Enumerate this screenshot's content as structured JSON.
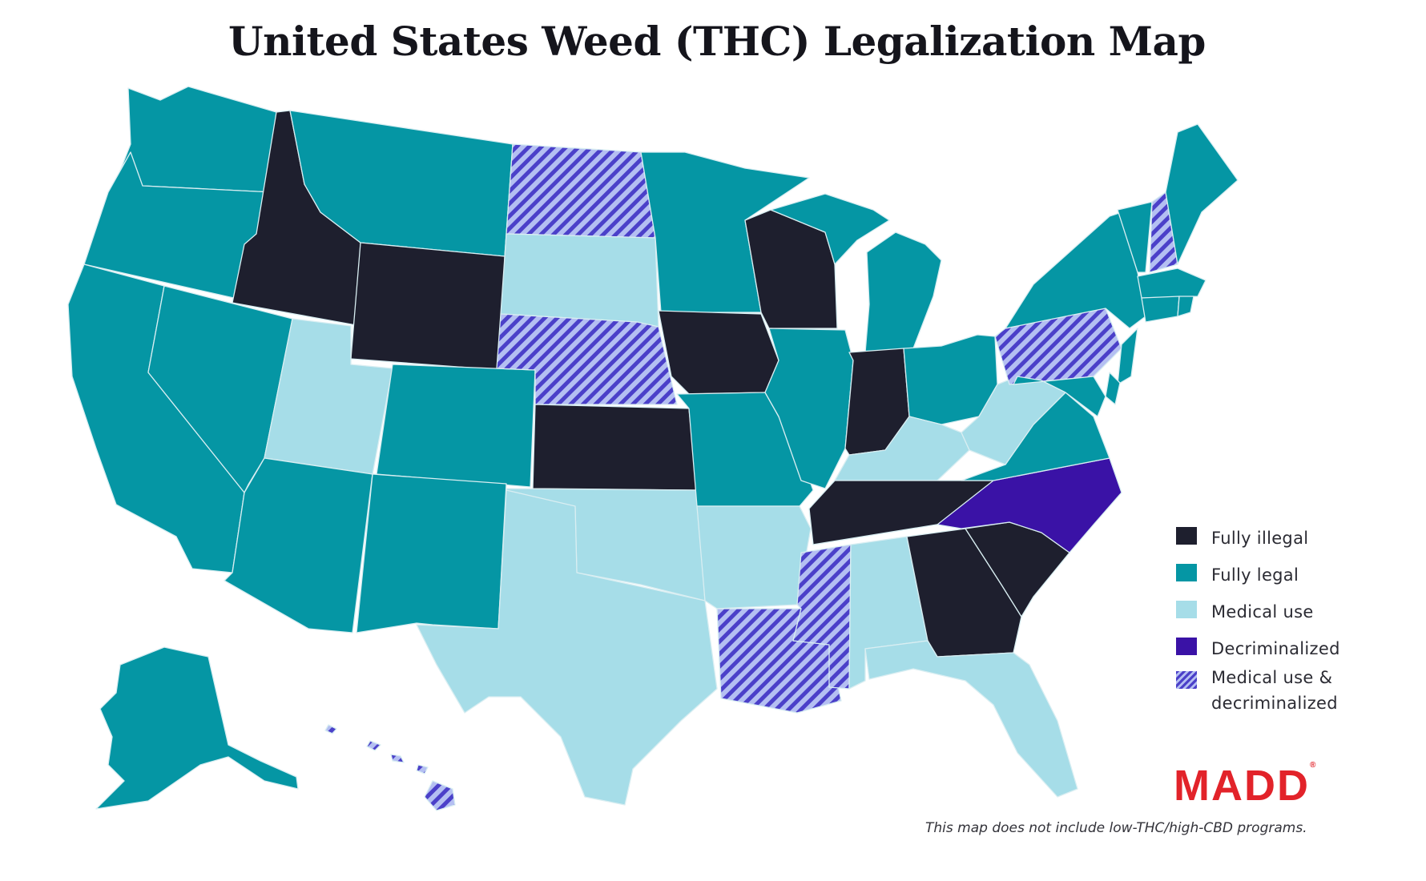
{
  "title": "United States Weed (THC) Legalization Map",
  "colors": {
    "fully_illegal": "#1e1f2e",
    "fully_legal": "#0596a4",
    "medical_use": "#a6dde8",
    "decriminalized": "#3a12a6",
    "medical_decriminalized_stripe": "#4b40c9",
    "medical_decriminalized_base": "#b4bff2",
    "brand_red": "#e2232a",
    "state_border": "#d9eef2"
  },
  "legend": {
    "items": [
      {
        "key": "fully_illegal",
        "label": "Fully illegal"
      },
      {
        "key": "fully_legal",
        "label": "Fully legal"
      },
      {
        "key": "medical_use",
        "label": "Medical use"
      },
      {
        "key": "decriminalized",
        "label": "Decriminalized"
      },
      {
        "key": "medical_decriminalized",
        "label": "Medical use &\ndecriminalized"
      }
    ]
  },
  "brand": {
    "logo_text": "MADD",
    "mark": "®"
  },
  "footnote": "This map does not include low-THC/high-CBD programs.",
  "states": {
    "WA": "fully_legal",
    "OR": "fully_legal",
    "CA": "fully_legal",
    "NV": "fully_legal",
    "ID": "fully_illegal",
    "MT": "fully_legal",
    "WY": "fully_illegal",
    "UT": "medical_use",
    "AZ": "fully_legal",
    "CO": "fully_legal",
    "NM": "fully_legal",
    "ND": "medical_decriminalized",
    "SD": "medical_use",
    "NE": "medical_decriminalized",
    "KS": "fully_illegal",
    "OK": "medical_use",
    "TX": "medical_use",
    "MN": "fully_legal",
    "IA": "fully_illegal",
    "MO": "fully_legal",
    "AR": "medical_use",
    "LA": "medical_decriminalized",
    "WI": "fully_illegal",
    "IL": "fully_legal",
    "MI": "fully_legal",
    "IN": "fully_illegal",
    "OH": "fully_legal",
    "KY": "medical_use",
    "TN": "fully_illegal",
    "MS": "medical_decriminalized",
    "AL": "medical_use",
    "GA": "fully_illegal",
    "FL": "medical_use",
    "SC": "fully_illegal",
    "NC": "decriminalized",
    "VA": "fully_legal",
    "WV": "medical_use",
    "PA": "medical_decriminalized",
    "NY": "fully_legal",
    "VT": "fully_legal",
    "NH": "medical_decriminalized",
    "ME": "fully_legal",
    "MA": "fully_legal",
    "CT": "fully_legal",
    "RI": "fully_legal",
    "NJ": "fully_legal",
    "DE": "fully_legal",
    "MD": "fully_legal",
    "AK": "fully_legal",
    "HI": "medical_decriminalized"
  }
}
